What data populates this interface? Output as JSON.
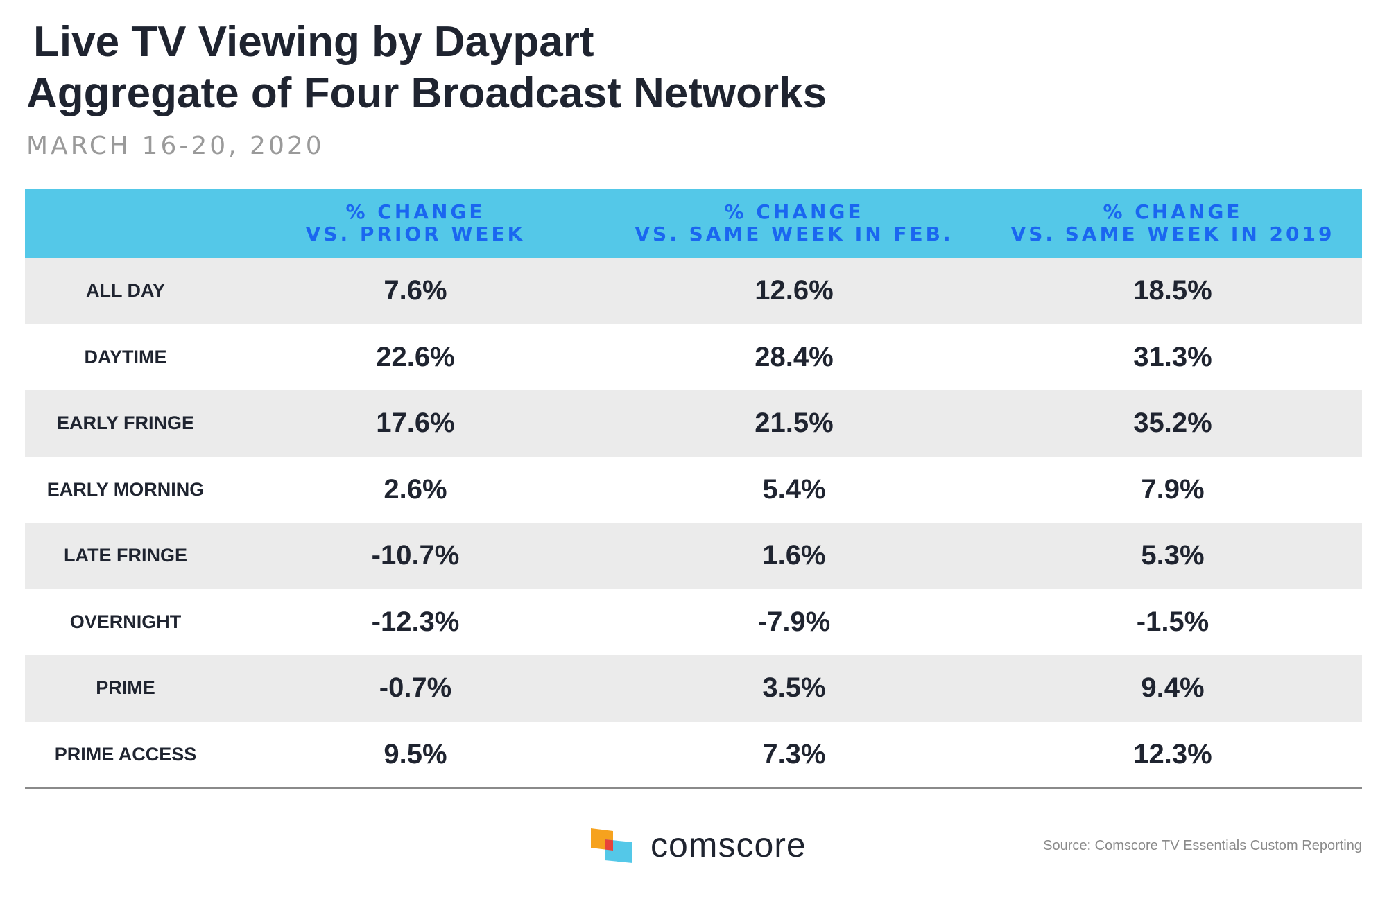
{
  "title_line1": "Live TV Viewing by Daypart",
  "title_line2": "Aggregate of Four Broadcast Networks",
  "subtitle": "MARCH 16-20, 2020",
  "source": "Source: Comscore TV Essentials Custom Reporting",
  "logo_text": "comscore",
  "colors": {
    "header_bg": "#54c8e8",
    "header_text": "#1a66f0",
    "row_shade": "#ebebeb",
    "text": "#1f2430",
    "logo_orange": "#f6a21e",
    "logo_red": "#e8433a",
    "logo_cyan": "#54c8e8"
  },
  "chart_data": {
    "type": "table",
    "title": "Live TV Viewing by Daypart — Aggregate of Four Broadcast Networks",
    "subtitle": "MARCH 16-20, 2020",
    "columns": [
      {
        "line1": "% CHANGE",
        "line2": "VS. PRIOR WEEK"
      },
      {
        "line1": "% CHANGE",
        "line2": "VS. SAME WEEK IN FEB."
      },
      {
        "line1": "% CHANGE",
        "line2": "VS. SAME WEEK IN 2019"
      }
    ],
    "rows": [
      {
        "label": "ALL DAY",
        "values": [
          "7.6%",
          "12.6%",
          "18.5%"
        ]
      },
      {
        "label": "DAYTIME",
        "values": [
          "22.6%",
          "28.4%",
          "31.3%"
        ]
      },
      {
        "label": "EARLY FRINGE",
        "values": [
          "17.6%",
          "21.5%",
          "35.2%"
        ]
      },
      {
        "label": "EARLY MORNING",
        "values": [
          "2.6%",
          "5.4%",
          "7.9%"
        ]
      },
      {
        "label": "LATE FRINGE",
        "values": [
          "-10.7%",
          "1.6%",
          "5.3%"
        ]
      },
      {
        "label": "OVERNIGHT",
        "values": [
          "-12.3%",
          "-7.9%",
          "-1.5%"
        ]
      },
      {
        "label": "PRIME",
        "values": [
          "-0.7%",
          "3.5%",
          "9.4%"
        ]
      },
      {
        "label": "PRIME ACCESS",
        "values": [
          "9.5%",
          "7.3%",
          "12.3%"
        ]
      }
    ]
  }
}
